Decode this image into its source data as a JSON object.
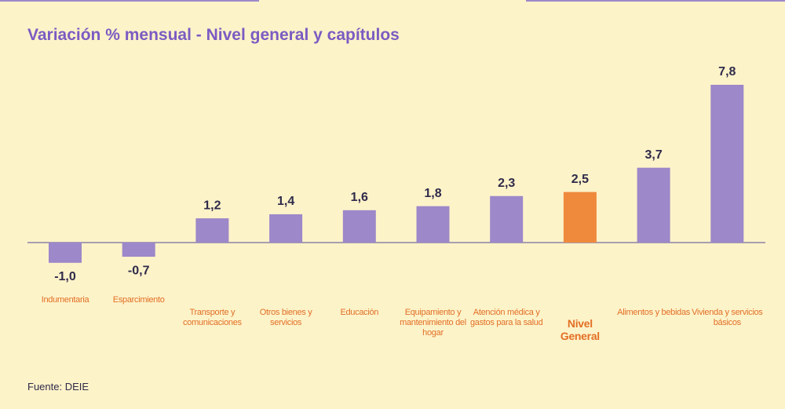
{
  "chart_data": {
    "type": "bar",
    "title": "Variación % mensual - Nivel general y capítulos",
    "categories": [
      "Indumentaria",
      "Esparcimiento",
      "Transporte y comunicaciones",
      "Otros bienes y servicios",
      "Educación",
      "Equipamiento y mantenimiento del hogar",
      "Atención médica y gastos para la salud",
      "Nivel General",
      "Alimentos y bebidas",
      "Vivienda y servicios básicos"
    ],
    "values": [
      -1.0,
      -0.7,
      1.2,
      1.4,
      1.6,
      1.8,
      2.3,
      2.5,
      3.7,
      7.8
    ],
    "value_labels": [
      "-1,0",
      "-0,7",
      "1,2",
      "1,4",
      "1,6",
      "1,8",
      "2,3",
      "2,5",
      "3,7",
      "7,8"
    ],
    "colors": [
      "#9d88c9",
      "#9d88c9",
      "#9d88c9",
      "#9d88c9",
      "#9d88c9",
      "#9d88c9",
      "#9d88c9",
      "#ef8a3d",
      "#9d88c9",
      "#9d88c9"
    ],
    "source": "Fuente: DEIE"
  }
}
